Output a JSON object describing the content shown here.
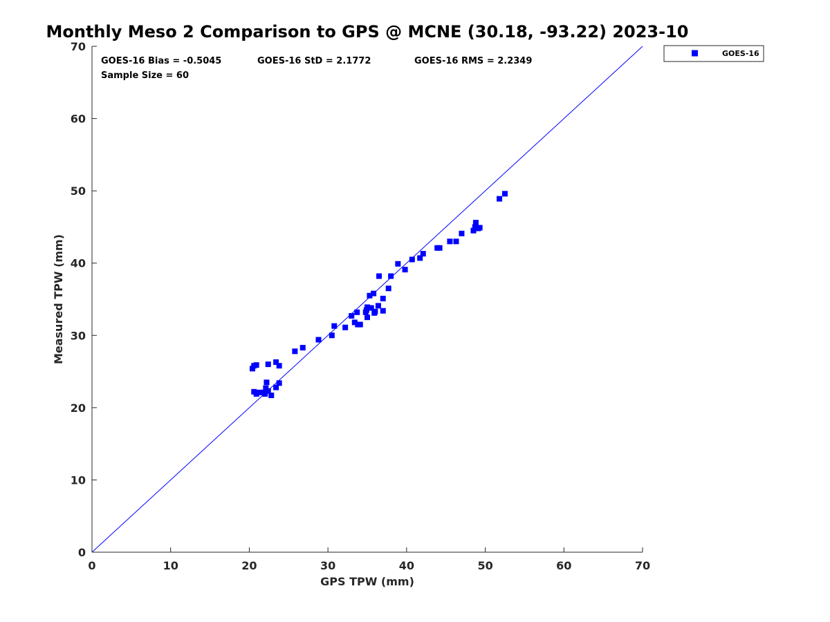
{
  "chart_data": {
    "type": "scatter",
    "title": "Monthly Meso 2 Comparison to GPS @ MCNE (30.18, -93.22) 2023-10",
    "xlabel": "GPS TPW (mm)",
    "ylabel": "Measured TPW (mm)",
    "xlim": [
      0,
      70
    ],
    "ylim": [
      0,
      70
    ],
    "xticks": [
      0,
      10,
      20,
      30,
      40,
      50,
      60,
      70
    ],
    "yticks": [
      0,
      10,
      20,
      30,
      40,
      50,
      60,
      70
    ],
    "grid": false,
    "legend_position": "top-right-outside",
    "reference_line": {
      "name": "1:1 line",
      "from": [
        0,
        0
      ],
      "to": [
        70,
        70
      ],
      "color": "#0000ff"
    },
    "stats": {
      "bias": "GOES-16 Bias = -0.5045",
      "std": "GOES-16 StD = 2.1772",
      "rms": "GOES-16 RMS = 2.2349",
      "sample_size": "Sample Size = 60"
    },
    "series": [
      {
        "name": "GOES-16",
        "color": "#0000ff",
        "marker": "square",
        "points": [
          [
            20.4,
            25.4
          ],
          [
            20.6,
            25.8
          ],
          [
            20.9,
            25.9
          ],
          [
            22.4,
            26.0
          ],
          [
            23.4,
            26.3
          ],
          [
            23.8,
            25.8
          ],
          [
            20.6,
            22.2
          ],
          [
            20.9,
            21.9
          ],
          [
            21.3,
            22.1
          ],
          [
            21.8,
            22.1
          ],
          [
            22.1,
            22.7
          ],
          [
            22.2,
            23.5
          ],
          [
            22.0,
            21.9
          ],
          [
            22.4,
            22.3
          ],
          [
            22.8,
            21.7
          ],
          [
            23.4,
            22.8
          ],
          [
            23.8,
            23.4
          ],
          [
            25.8,
            27.8
          ],
          [
            26.8,
            28.3
          ],
          [
            28.8,
            29.4
          ],
          [
            30.5,
            30.0
          ],
          [
            30.8,
            31.3
          ],
          [
            32.2,
            31.1
          ],
          [
            33.0,
            32.7
          ],
          [
            33.4,
            31.8
          ],
          [
            33.7,
            33.2
          ],
          [
            33.8,
            31.5
          ],
          [
            34.1,
            31.5
          ],
          [
            34.8,
            33.2
          ],
          [
            35.0,
            32.5
          ],
          [
            35.0,
            33.9
          ],
          [
            35.3,
            35.5
          ],
          [
            35.5,
            33.8
          ],
          [
            35.8,
            35.8
          ],
          [
            35.9,
            33.1
          ],
          [
            36.4,
            34.1
          ],
          [
            36.5,
            38.2
          ],
          [
            37.0,
            35.1
          ],
          [
            37.0,
            33.4
          ],
          [
            37.7,
            36.5
          ],
          [
            38.0,
            38.2
          ],
          [
            38.9,
            39.9
          ],
          [
            39.8,
            39.1
          ],
          [
            40.7,
            40.5
          ],
          [
            41.7,
            40.7
          ],
          [
            42.1,
            41.3
          ],
          [
            43.9,
            42.1
          ],
          [
            44.2,
            42.1
          ],
          [
            45.5,
            43.0
          ],
          [
            46.3,
            43.0
          ],
          [
            47.0,
            44.1
          ],
          [
            48.5,
            44.5
          ],
          [
            48.7,
            45.0
          ],
          [
            48.8,
            45.6
          ],
          [
            49.1,
            44.8
          ],
          [
            49.3,
            44.9
          ],
          [
            51.8,
            48.9
          ],
          [
            52.5,
            49.6
          ],
          [
            34.9,
            33.5
          ],
          [
            36.0,
            33.3
          ]
        ]
      }
    ]
  }
}
